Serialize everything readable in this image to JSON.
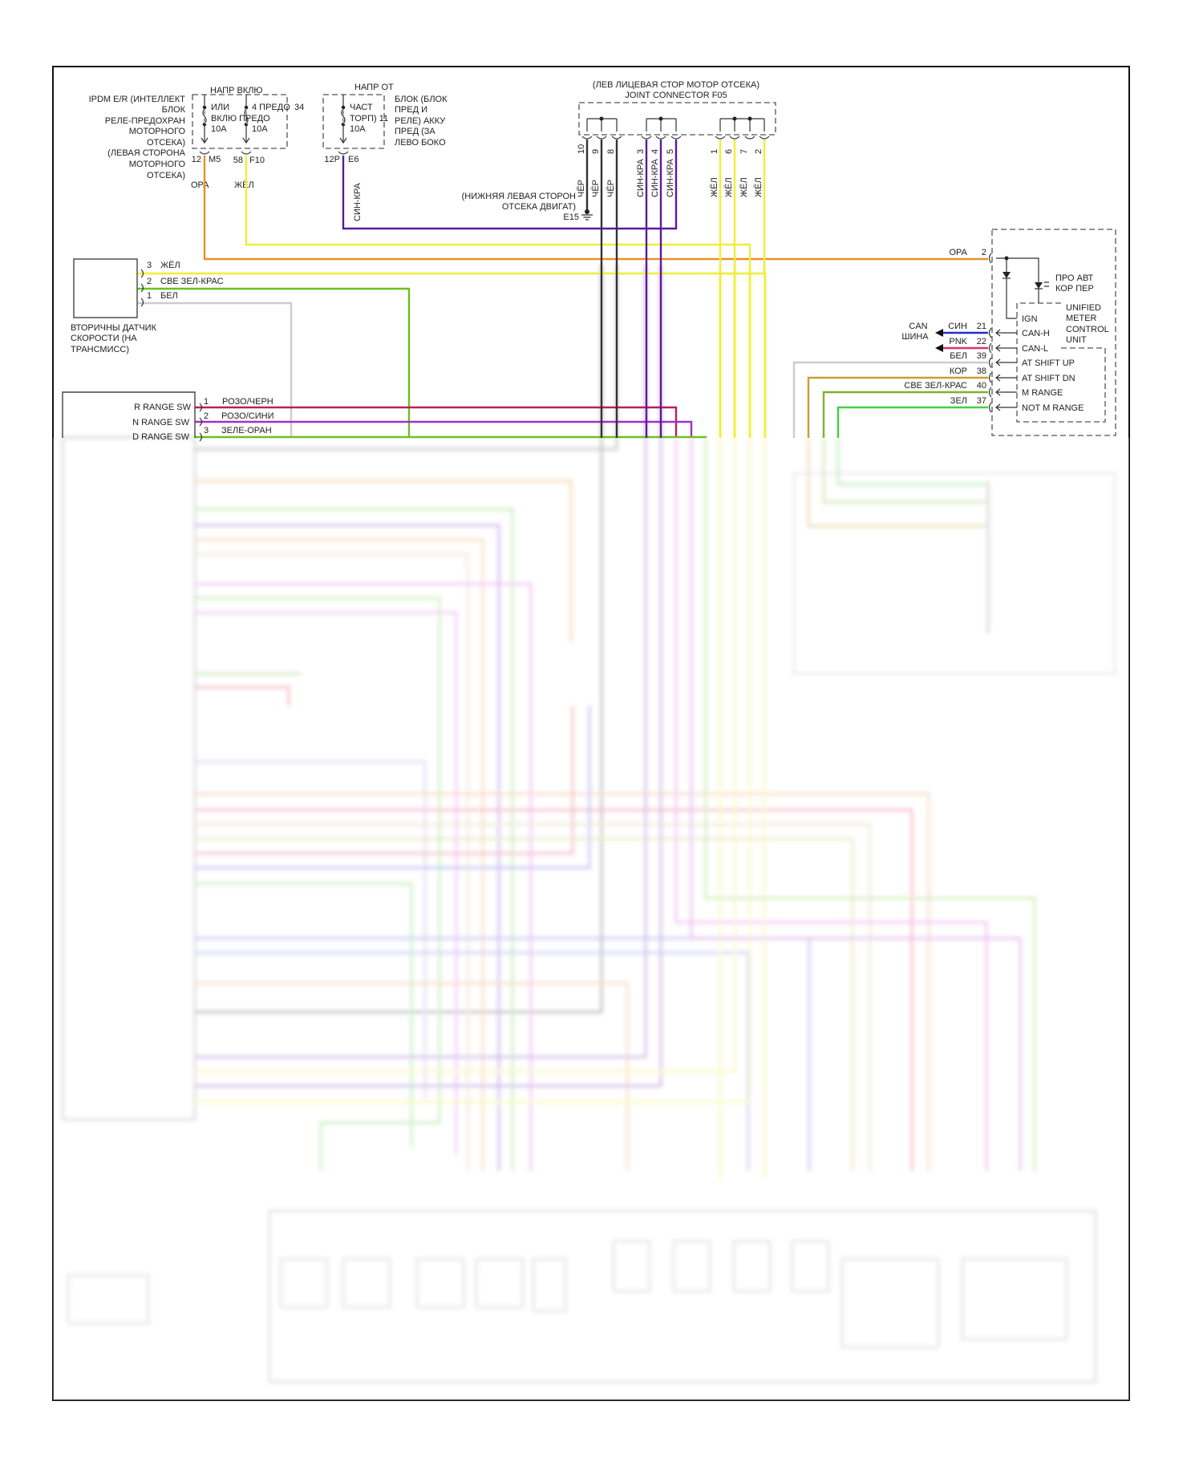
{
  "colors": {
    "orange": "#e8902a",
    "yellow": "#eeee3a",
    "purple": "#5a1a9a",
    "black": "#333333",
    "green": "#6cc020",
    "white_wire": "#c8c8c8",
    "pink_black": "#b8205a",
    "pink_blue": "#a030c8",
    "green_orange": "#70c020",
    "blue": "#2030c8",
    "pink": "#e0306a",
    "brown": "#c8a030",
    "bright_green": "#44d040"
  },
  "ipdm": {
    "label": [
      "IPDM E/R (ИНТЕЛЛЕКТ",
      "БЛОК",
      "РЕЛЕ-ПРЕДОХРАН",
      "МОТОРНОГО",
      "ОТСЕКА)",
      "(ЛЕВАЯ СТОРОНА",
      "МОТОРНОГО",
      "ОТСЕКА)"
    ],
    "group": "НАПР ВКЛЮ",
    "fuse_a": [
      "ИЛИ",
      "ВКЛЮ ПРЕДО",
      "10A"
    ],
    "fuse_b": [
      "4 ПРЕДО",
      "34",
      "10A"
    ],
    "pin_a": "12",
    "conn_a": "M5",
    "pin_b": "58",
    "conn_b": "F10",
    "wire_a": "ОРА",
    "wire_b": "ЖЁЛ"
  },
  "fuse_block": {
    "group": "НАПР ОТ",
    "fuse": [
      "ЧАСТ",
      "ТОРП) 11",
      "10A"
    ],
    "label": [
      "БЛОК (БЛОК",
      "ПРЕД И",
      "РЕЛЕ) АККУ",
      "ПРЕД (ЗА",
      "ЛЕВО БОКО"
    ],
    "pin": "12P",
    "conn": "E6",
    "wire": "СИН-КРА"
  },
  "joint": {
    "title": [
      "(ЛЕВ ЛИЦЕВАЯ СТОР МОТОР ОТСЕКА)",
      "JOINT CONNECTOR F05"
    ],
    "pins": [
      {
        "n": "10",
        "wire": "ЧЁР"
      },
      {
        "n": "9",
        "wire": "ЧЁР"
      },
      {
        "n": "8",
        "wire": "ЧЁР"
      },
      {
        "n": "3",
        "wire": "СИН-КРА"
      },
      {
        "n": "4",
        "wire": "СИН-КРА"
      },
      {
        "n": "5",
        "wire": "СИН-КРА"
      },
      {
        "n": "1",
        "wire": "ЖЁЛ"
      },
      {
        "n": "6",
        "wire": "ЖЁЛ"
      },
      {
        "n": "7",
        "wire": "ЖЁЛ"
      },
      {
        "n": "2",
        "wire": "ЖЁЛ"
      }
    ]
  },
  "ground": {
    "label": [
      "(НИЖНЯЯ ЛЕВАЯ СТОРОН",
      "ОТСЕКА ДВИГАТ)"
    ],
    "id": "E15"
  },
  "sensor": {
    "label": [
      "ВТОРИЧНЫ ДАТЧИК",
      "СКОРОСТИ (НА",
      "ТРАНСМИСС)"
    ],
    "pins": [
      {
        "n": "3",
        "wire": "ЖЁЛ"
      },
      {
        "n": "2",
        "wire": "СВЕ ЗЕЛ-КРАС"
      },
      {
        "n": "1",
        "wire": "БЕЛ"
      }
    ]
  },
  "range_switch": {
    "pins": [
      {
        "label": "R RANGE SW",
        "n": "1",
        "wire": "РОЗО/ЧЕРН"
      },
      {
        "label": "N RANGE SW",
        "n": "2",
        "wire": "РОЗО/СИНИ"
      },
      {
        "label": "D RANGE SW",
        "n": "3",
        "wire": "ЗЕЛЕ-ОРАН"
      }
    ]
  },
  "meter": {
    "power_wire": "ОРА",
    "power_pin": "2",
    "indicator": [
      "ПРО АВТ",
      "КОР ПЕР"
    ],
    "unit": [
      "UNIFIED",
      "METER",
      "CONTROL",
      "UNIT"
    ],
    "can": [
      "CAN",
      "ШИНА"
    ],
    "ign": "IGN",
    "pins": [
      {
        "wire": "СИН",
        "n": "21",
        "signal": "CAN-H"
      },
      {
        "wire": "PNK",
        "n": "22",
        "signal": "CAN-L"
      },
      {
        "wire": "БЕЛ",
        "n": "39",
        "signal": "AT SHIFT UP"
      },
      {
        "wire": "КОР",
        "n": "38",
        "signal": "AT SHIFT DN"
      },
      {
        "wire": "СВЕ ЗЕЛ-КРАС",
        "n": "40",
        "signal": "M RANGE"
      },
      {
        "wire": "ЗЕЛ",
        "n": "37",
        "signal": "NOT M RANGE"
      }
    ]
  }
}
